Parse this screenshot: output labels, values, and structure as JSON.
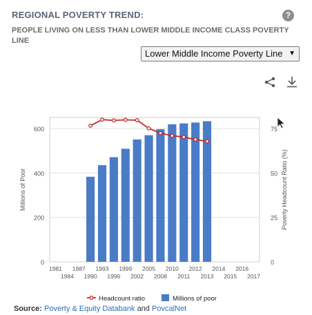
{
  "header": {
    "title": "REGIONAL POVERTY TREND:",
    "subtitle": "PEOPLE LIVING ON LESS THAN LOWER MIDDLE INCOME CLASS POVERTY LINE",
    "help_glyph": "?"
  },
  "dropdown": {
    "selected": "Lower Middle Income Poverty Line",
    "arrow": "▼"
  },
  "toolbar": {
    "share_icon": "share-icon",
    "download_icon": "download-icon"
  },
  "source": {
    "label": "Source:",
    "link1": "Poverty & Equity Databank",
    "conj": "and",
    "link2": "PovcalNet"
  },
  "colors": {
    "bar": "#4a7cc6",
    "line": "#c62828",
    "title": "#5a6478",
    "link": "#2b6fb5"
  },
  "chart_data": {
    "type": "bar+line",
    "x_ticks_top": [
      "1981",
      "1987",
      "1993",
      "1999",
      "2005",
      "2010",
      "2012",
      "2014",
      "2016"
    ],
    "x_ticks_bottom": [
      "1984",
      "1990",
      "1996",
      "2002",
      "2008",
      "2011",
      "2013",
      "2015",
      "2017"
    ],
    "categories": [
      "1981",
      "1984",
      "1987",
      "1990",
      "1993",
      "1996",
      "1999",
      "2002",
      "2005",
      "2008",
      "2010",
      "2011",
      "2012",
      "2013",
      "2014",
      "2015",
      "2016",
      "2017"
    ],
    "series": [
      {
        "name": "Millions of poor",
        "type": "bar",
        "axis": "left",
        "values": [
          null,
          null,
          null,
          383,
          435,
          471,
          509,
          551,
          570,
          597,
          619,
          623,
          627,
          633,
          null,
          null,
          null,
          null
        ]
      },
      {
        "name": "Headcount ratio",
        "type": "line",
        "axis": "right",
        "values": [
          null,
          null,
          null,
          76.6,
          80,
          79.6,
          79.9,
          79.7,
          75.1,
          72.4,
          71,
          70.2,
          68.8,
          67.8,
          null,
          null,
          null,
          null
        ]
      }
    ],
    "ylabel_left": "Millions of Poor",
    "ylabel_right": "Poverty Headcount Ratio (%)",
    "y_left_ticks": [
      0,
      200,
      400,
      600
    ],
    "y_right_ticks": [
      0,
      25,
      50,
      75
    ],
    "ylim_left": [
      0,
      650
    ],
    "ylim_right": [
      0,
      81.25
    ],
    "grid": true,
    "legend": [
      "Headcount ratio",
      "Millions of poor"
    ],
    "legend_position": "bottom"
  }
}
